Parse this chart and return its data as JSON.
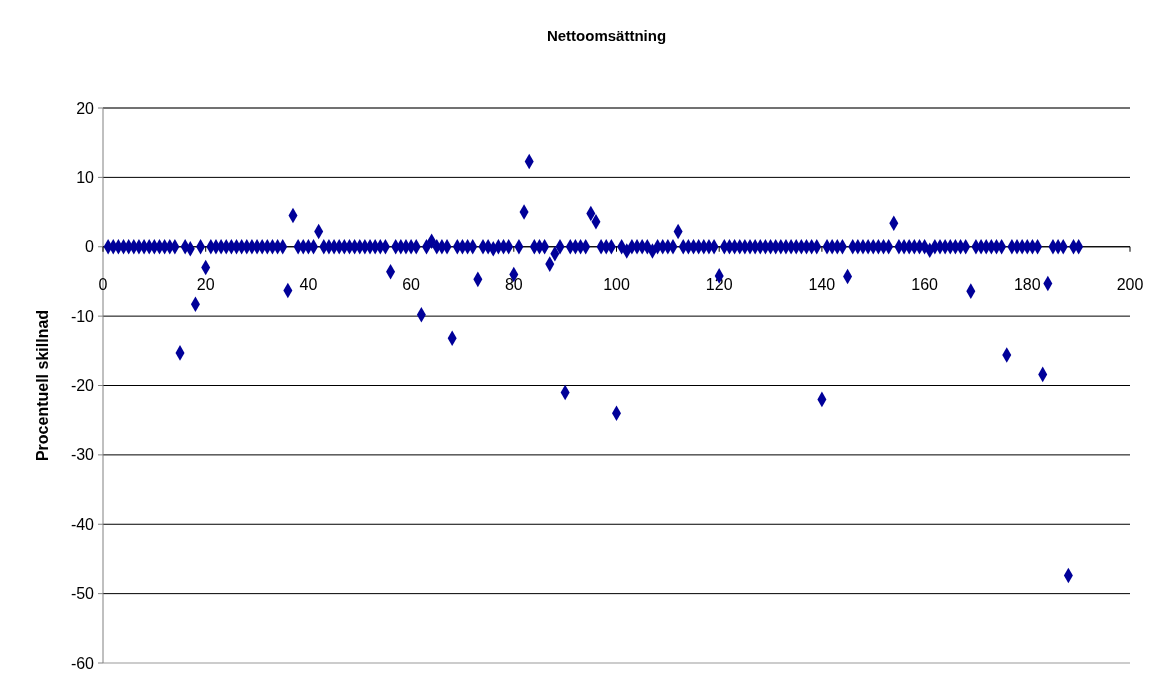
{
  "chart_data": {
    "type": "scatter",
    "title": "Nettoomsättning",
    "ylabel": "Procentuell skillnad",
    "x": [
      1,
      2,
      3,
      4,
      5,
      6,
      7,
      8,
      9,
      10,
      11,
      12,
      13,
      14,
      15,
      16,
      17,
      18,
      19,
      20,
      21,
      22,
      23,
      24,
      25,
      26,
      27,
      28,
      29,
      30,
      31,
      32,
      33,
      34,
      35,
      36,
      37,
      38,
      39,
      40,
      41,
      42,
      43,
      44,
      45,
      46,
      47,
      48,
      49,
      50,
      51,
      52,
      53,
      54,
      55,
      56,
      57,
      58,
      59,
      60,
      61,
      62,
      63,
      64,
      65,
      66,
      67,
      68,
      69,
      70,
      71,
      72,
      73,
      74,
      75,
      76,
      77,
      78,
      79,
      80,
      81,
      82,
      83,
      84,
      85,
      86,
      87,
      88,
      89,
      90,
      91,
      92,
      93,
      94,
      95,
      96,
      97,
      98,
      99,
      100,
      101,
      102,
      103,
      104,
      105,
      106,
      107,
      108,
      109,
      110,
      111,
      112,
      113,
      114,
      115,
      116,
      117,
      118,
      119,
      120,
      121,
      122,
      123,
      124,
      125,
      126,
      127,
      128,
      129,
      130,
      131,
      132,
      133,
      134,
      135,
      136,
      137,
      138,
      139,
      140,
      141,
      142,
      143,
      144,
      145,
      146,
      147,
      148,
      149,
      150,
      151,
      152,
      153,
      154,
      155,
      156,
      157,
      158,
      159,
      160,
      161,
      162,
      163,
      164,
      165,
      166,
      167,
      168,
      169,
      170,
      171,
      172,
      173,
      174,
      175,
      176,
      177,
      178,
      179,
      180,
      181,
      182,
      183,
      184,
      185,
      186,
      187,
      188,
      189,
      190
    ],
    "series": [
      {
        "color": "#000099",
        "values": [
          0,
          0,
          0,
          0,
          0,
          0,
          0,
          0,
          0,
          0,
          0,
          0,
          0,
          0,
          -15.3,
          0,
          -0.3,
          -8.3,
          0,
          -3,
          0,
          0,
          0,
          0,
          0,
          0,
          0,
          0,
          0,
          0,
          0,
          0,
          0,
          0,
          0,
          -6.3,
          4.5,
          0,
          0,
          0,
          0,
          2.2,
          0,
          0,
          0,
          0,
          0,
          0,
          0,
          0,
          0,
          0,
          0,
          0,
          0,
          -3.6,
          0,
          0,
          0,
          0,
          0,
          -9.8,
          0,
          0.8,
          0,
          0,
          0,
          -13.2,
          0,
          0,
          0,
          0,
          -4.7,
          0,
          0,
          -0.3,
          0,
          0,
          0,
          -4,
          0,
          5,
          12.3,
          0,
          0,
          0,
          -2.5,
          -1,
          0,
          -21,
          0,
          0,
          0,
          0,
          4.8,
          3.6,
          0,
          0,
          0,
          -24,
          0,
          -0.6,
          0,
          0,
          0,
          0,
          -0.6,
          0,
          0,
          0,
          0,
          2.2,
          0,
          0,
          0,
          0,
          0,
          0,
          0,
          -4.2,
          0,
          0,
          0,
          0,
          0,
          0,
          0,
          0,
          0,
          0,
          0,
          0,
          0,
          0,
          0,
          0,
          0,
          0,
          0,
          -22,
          0,
          0,
          0,
          0,
          -4.3,
          0,
          0,
          0,
          0,
          0,
          0,
          0,
          0,
          3.4,
          0,
          0,
          0,
          0,
          0,
          0,
          -0.5,
          0,
          0,
          0,
          0,
          0,
          0,
          0,
          -6.4,
          0,
          0,
          0,
          0,
          0,
          0,
          -15.6,
          0,
          0,
          0,
          0,
          0,
          0,
          -18.4,
          -5.3,
          0,
          0,
          0,
          -47.4,
          0,
          0
        ]
      }
    ],
    "xlim": [
      0,
      200
    ],
    "xticks": [
      0,
      20,
      40,
      60,
      80,
      100,
      120,
      140,
      160,
      180,
      200
    ],
    "ylim": [
      -60,
      20
    ],
    "yticks": [
      -60,
      -50,
      -40,
      -30,
      -20,
      -10,
      0,
      10,
      20
    ],
    "grid": "y",
    "marker": "diamond"
  }
}
